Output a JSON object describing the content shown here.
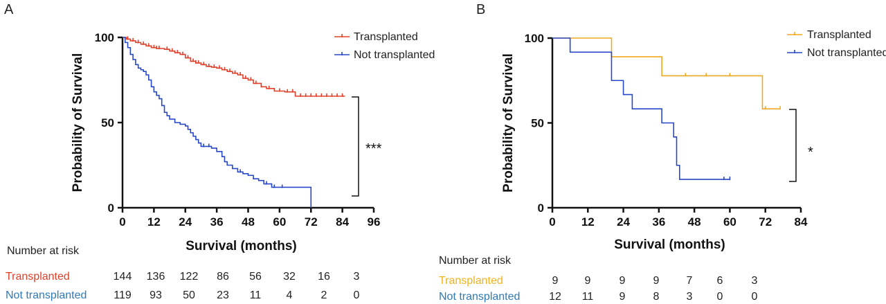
{
  "panels": [
    {
      "letter": "A",
      "risk_title": "Number at risk",
      "significance": "***",
      "chart_data": {
        "type": "line",
        "subtype": "kaplan-meier",
        "xlabel": "Survival (months)",
        "ylabel": "Probability of Survival",
        "xlim": [
          0,
          96
        ],
        "ylim": [
          0,
          100
        ],
        "xticks": [
          0,
          12,
          24,
          36,
          48,
          60,
          72,
          84,
          96
        ],
        "yticks": [
          0,
          50,
          100
        ],
        "legend_position": "top-right",
        "series": [
          {
            "name": "Transplanted",
            "color": "#e0402a",
            "steps": [
              [
                0,
                100
              ],
              [
                1.5,
                99
              ],
              [
                3,
                98
              ],
              [
                5,
                97
              ],
              [
                7,
                96
              ],
              [
                9,
                95
              ],
              [
                11,
                94
              ],
              [
                13,
                93.5
              ],
              [
                16,
                93
              ],
              [
                18,
                92
              ],
              [
                20,
                91
              ],
              [
                22,
                90
              ],
              [
                24,
                88
              ],
              [
                26,
                86
              ],
              [
                28,
                85
              ],
              [
                30,
                84
              ],
              [
                32,
                83
              ],
              [
                34,
                82.5
              ],
              [
                36,
                82
              ],
              [
                38,
                81
              ],
              [
                40,
                80
              ],
              [
                42,
                79
              ],
              [
                44,
                78
              ],
              [
                46,
                76
              ],
              [
                48,
                75
              ],
              [
                50,
                73
              ],
              [
                53,
                71
              ],
              [
                55,
                70
              ],
              [
                58,
                68.5
              ],
              [
                62,
                68
              ],
              [
                66,
                65.5
              ],
              [
                85,
                65.5
              ]
            ],
            "censor_x": [
              2,
              4,
              6,
              8,
              10,
              12,
              13,
              14,
              17,
              19,
              21,
              23,
              25,
              26,
              27,
              28,
              29,
              31,
              33,
              35,
              37,
              39,
              41,
              43,
              45,
              47,
              49,
              51,
              53,
              56,
              60,
              63,
              65,
              68,
              70,
              72,
              74,
              76,
              78,
              80,
              82,
              84
            ]
          },
          {
            "name": "Not transplanted",
            "color": "#2747c9",
            "steps": [
              [
                0,
                100
              ],
              [
                1,
                97
              ],
              [
                2,
                94
              ],
              [
                3,
                90
              ],
              [
                4,
                87
              ],
              [
                5,
                84
              ],
              [
                6,
                82
              ],
              [
                7,
                81
              ],
              [
                8,
                80
              ],
              [
                9,
                78
              ],
              [
                10,
                75
              ],
              [
                11,
                71
              ],
              [
                12,
                68
              ],
              [
                13,
                66
              ],
              [
                14,
                64
              ],
              [
                15,
                60
              ],
              [
                16,
                56
              ],
              [
                17,
                54
              ],
              [
                18,
                52
              ],
              [
                20,
                50
              ],
              [
                22,
                49
              ],
              [
                24,
                48
              ],
              [
                25,
                46
              ],
              [
                26,
                44
              ],
              [
                27,
                42
              ],
              [
                28,
                40
              ],
              [
                29,
                38
              ],
              [
                30,
                36
              ],
              [
                34,
                35
              ],
              [
                36,
                33
              ],
              [
                38,
                30
              ],
              [
                39,
                27
              ],
              [
                40,
                25
              ],
              [
                42,
                23
              ],
              [
                44,
                21
              ],
              [
                46,
                20
              ],
              [
                48,
                19
              ],
              [
                50,
                17
              ],
              [
                52,
                16
              ],
              [
                54,
                14
              ],
              [
                57,
                12
              ],
              [
                60,
                12
              ],
              [
                64,
                12
              ],
              [
                72,
                12
              ],
              [
                72,
                0
              ]
            ],
            "censor_x": [
              31,
              33,
              45,
              55,
              58,
              61
            ]
          }
        ]
      },
      "at_risk": {
        "x": [
          0,
          12,
          24,
          36,
          48,
          60,
          72,
          84
        ],
        "rows": [
          {
            "label": "Transplanted",
            "color": "#e0402a",
            "values": [
              "144",
              "136",
              "122",
              "86",
              "56",
              "32",
              "16",
              "3"
            ]
          },
          {
            "label": "Not transplanted",
            "color": "#2f79b8",
            "values": [
              "119",
              "93",
              "50",
              "23",
              "11",
              "4",
              "2",
              "0"
            ]
          }
        ]
      }
    },
    {
      "letter": "B",
      "risk_title": "Number at risk",
      "significance": "*",
      "chart_data": {
        "type": "line",
        "subtype": "kaplan-meier",
        "xlabel": "Survival (months)",
        "ylabel": "Probability of Survival",
        "xlim": [
          0,
          84
        ],
        "ylim": [
          0,
          100
        ],
        "xticks": [
          0,
          12,
          24,
          36,
          48,
          60,
          72,
          84
        ],
        "yticks": [
          0,
          50,
          100
        ],
        "legend_position": "top-right",
        "series": [
          {
            "name": "Transplanted",
            "color": "#f0a91e",
            "steps": [
              [
                0,
                100
              ],
              [
                20,
                100
              ],
              [
                20,
                89
              ],
              [
                37,
                89
              ],
              [
                37,
                77.8
              ],
              [
                71,
                77.8
              ],
              [
                71,
                58.3
              ],
              [
                77,
                58.3
              ]
            ],
            "censor_x": [
              45,
              52,
              60,
              72,
              77
            ]
          },
          {
            "name": "Not transplanted",
            "color": "#2747c9",
            "steps": [
              [
                0,
                100
              ],
              [
                6,
                100
              ],
              [
                6,
                91.7
              ],
              [
                20,
                91.7
              ],
              [
                20,
                75
              ],
              [
                24,
                75
              ],
              [
                24,
                66.7
              ],
              [
                27,
                66.7
              ],
              [
                27,
                58.3
              ],
              [
                37,
                58.3
              ],
              [
                37,
                50
              ],
              [
                41,
                50
              ],
              [
                41,
                41.7
              ],
              [
                42,
                41.7
              ],
              [
                42,
                25
              ],
              [
                43,
                25
              ],
              [
                43,
                16.7
              ],
              [
                60,
                16.7
              ]
            ],
            "censor_x": [
              58,
              60
            ]
          }
        ]
      },
      "at_risk": {
        "x": [
          0,
          12,
          24,
          36,
          48,
          60,
          72
        ],
        "rows": [
          {
            "label": "Transplanted",
            "color": "#f0b21f",
            "values": [
              "9",
              "9",
              "9",
              "9",
              "7",
              "6",
              "3"
            ]
          },
          {
            "label": "Not transplanted",
            "color": "#2f79b8",
            "values": [
              "12",
              "11",
              "9",
              "8",
              "3",
              "0",
              "0"
            ]
          }
        ]
      }
    }
  ]
}
